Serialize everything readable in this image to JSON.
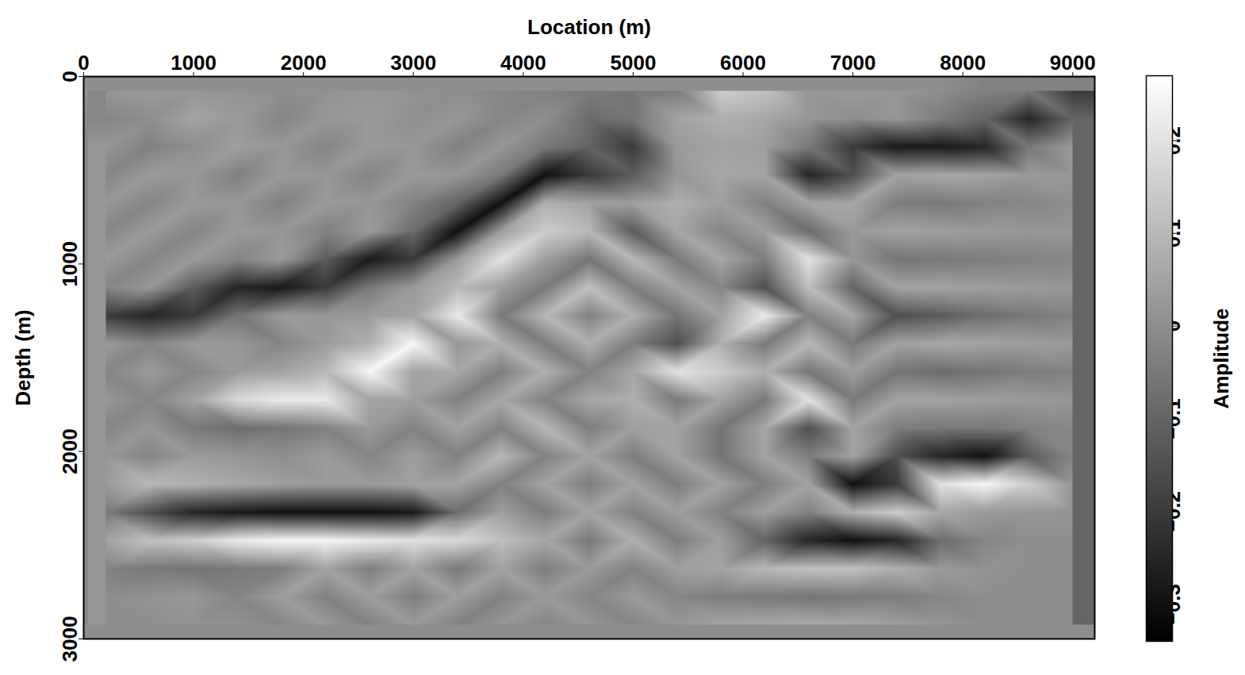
{
  "chart_data": {
    "type": "heatmap",
    "xlabel": "Location (m)",
    "ylabel": "Depth (m)",
    "xlim": [
      0,
      9200
    ],
    "ylim": [
      0,
      3000
    ],
    "xticks": [
      0,
      1000,
      2000,
      3000,
      4000,
      5000,
      6000,
      7000,
      8000,
      9000
    ],
    "yticks": [
      0,
      1000,
      2000,
      3000
    ],
    "x": [
      200,
      600,
      1000,
      1400,
      1800,
      2200,
      2600,
      3000,
      3400,
      3800,
      4200,
      4600,
      5000,
      5400,
      5800,
      6200,
      6600,
      7000,
      7400,
      7800,
      8200,
      8600,
      9000
    ],
    "y": [
      75,
      225,
      375,
      525,
      675,
      825,
      975,
      1125,
      1275,
      1425,
      1575,
      1725,
      1875,
      2025,
      2175,
      2325,
      2475,
      2625,
      2775,
      2925
    ],
    "values": [
      [
        0.02,
        0.03,
        0.02,
        0.01,
        0,
        0.01,
        0.02,
        0.01,
        0,
        -0.02,
        -0.03,
        -0.05,
        -0.06,
        -0.04,
        0.15,
        0.12,
        0.02,
        0.03,
        0.02,
        0,
        -0.03,
        -0.05,
        -0.2
      ],
      [
        -0.02,
        0,
        0.05,
        0.03,
        -0.02,
        0.02,
        0.03,
        0,
        0.02,
        -0.02,
        0,
        -0.08,
        -0.06,
        0.05,
        0.08,
        0.06,
        0.02,
        0,
        0.02,
        -0.04,
        -0.1,
        -0.25,
        -0.1
      ],
      [
        0.02,
        -0.03,
        0,
        0.04,
        0.02,
        -0.02,
        0.03,
        0.02,
        -0.03,
        0.02,
        -0.05,
        -0.1,
        -0.2,
        0.03,
        0.05,
        0.04,
        -0.05,
        -0.2,
        -0.28,
        -0.28,
        -0.25,
        -0.05,
        0.03
      ],
      [
        -0.02,
        0.03,
        0.02,
        -0.03,
        0.03,
        0.02,
        -0.02,
        0.03,
        0.02,
        -0.05,
        -0.3,
        -0.2,
        -0.12,
        0.02,
        0.06,
        0.05,
        -0.25,
        -0.15,
        0.05,
        0.06,
        0.05,
        0.03,
        0.02
      ],
      [
        0.02,
        -0.02,
        0.03,
        0.02,
        -0.03,
        0.03,
        0.02,
        -0.03,
        -0.1,
        -0.3,
        0.08,
        0.05,
        0.04,
        0.08,
        0.04,
        -0.03,
        0.05,
        0.06,
        -0.04,
        -0.05,
        -0.03,
        -0.02,
        0
      ],
      [
        -0.02,
        0.03,
        -0.02,
        0.03,
        0.02,
        -0.03,
        0.03,
        -0.08,
        -0.3,
        0.04,
        0.15,
        0.1,
        -0.12,
        0.06,
        -0.02,
        0.04,
        -0.08,
        0.03,
        0.05,
        0.04,
        0.03,
        0.02,
        0.02
      ],
      [
        0.03,
        -0.02,
        0.03,
        -0.02,
        0.03,
        -0.12,
        -0.28,
        -0.2,
        0.03,
        0.2,
        0.04,
        -0.06,
        0.1,
        -0.05,
        0.06,
        -0.04,
        0.2,
        0.02,
        -0.06,
        -0.05,
        -0.04,
        -0.03,
        -0.02
      ],
      [
        -0.02,
        0.02,
        -0.12,
        -0.25,
        -0.28,
        -0.2,
        -0.05,
        0.03,
        0.1,
        0.04,
        -0.05,
        0.12,
        -0.04,
        0.05,
        -0.02,
        -0.15,
        0.12,
        -0.1,
        0.05,
        0.05,
        0.04,
        0.03,
        0.02
      ],
      [
        -0.2,
        -0.25,
        -0.2,
        -0.06,
        0.03,
        0.02,
        0.03,
        0.05,
        0.22,
        -0.05,
        0.1,
        -0.03,
        0.08,
        -0.06,
        0.05,
        0.22,
        -0.03,
        0.06,
        -0.15,
        -0.12,
        -0.08,
        -0.05,
        -0.03
      ],
      [
        0.03,
        -0.02,
        0.03,
        0.02,
        -0.02,
        0.03,
        0.08,
        0.25,
        0.02,
        0.08,
        -0.04,
        0.08,
        -0.04,
        -0.15,
        0.08,
        -0.05,
        0.1,
        -0.05,
        0.05,
        0.06,
        0.05,
        0.04,
        0.03
      ],
      [
        -0.02,
        0.03,
        -0.02,
        0.03,
        0.05,
        0.1,
        0.25,
        0.05,
        0.06,
        -0.04,
        0.08,
        -0.03,
        0.06,
        0.2,
        0.15,
        0.08,
        -0.06,
        0.04,
        -0.06,
        -0.08,
        -0.06,
        -0.04,
        -0.03
      ],
      [
        0.02,
        -0.02,
        0.05,
        0.18,
        0.22,
        0.22,
        0.05,
        0.04,
        -0.03,
        0.06,
        -0.03,
        0.06,
        0.08,
        -0.05,
        0.05,
        -0.05,
        0.2,
        -0.05,
        0.05,
        0.05,
        0.04,
        0.03,
        0.02
      ],
      [
        -0.02,
        0.02,
        -0.05,
        -0.08,
        -0.06,
        -0.03,
        0.03,
        -0.03,
        0.05,
        -0.03,
        0.1,
        -0.04,
        0.04,
        0.05,
        -0.06,
        0.06,
        -0.15,
        0.05,
        -0.04,
        -0.05,
        -0.05,
        -0.03,
        -0.02
      ],
      [
        0.02,
        -0.02,
        0.03,
        0.02,
        0,
        0.03,
        -0.02,
        0.04,
        -0.03,
        0.1,
        -0.03,
        0.05,
        -0.04,
        0.05,
        -0.06,
        0.05,
        -0.04,
        0.05,
        -0.15,
        -0.25,
        -0.3,
        -0.12,
        -0.02
      ],
      [
        0.03,
        0.1,
        0.08,
        0.06,
        0.04,
        0.03,
        0.03,
        0.05,
        0.05,
        -0.03,
        0.05,
        -0.04,
        0.05,
        -0.04,
        0.05,
        -0.04,
        0.05,
        -0.3,
        -0.2,
        0.2,
        0.25,
        0.15,
        0.02
      ],
      [
        -0.05,
        -0.15,
        -0.25,
        -0.28,
        -0.3,
        -0.3,
        -0.3,
        -0.28,
        -0.08,
        0.04,
        -0.04,
        0.05,
        -0.03,
        0.04,
        -0.03,
        0.04,
        -0.03,
        0.08,
        0.15,
        0.06,
        0.03,
        0.02,
        0.01
      ],
      [
        0.05,
        0.12,
        0.15,
        0.22,
        0.25,
        0.25,
        0.22,
        0.2,
        0.18,
        0.12,
        0.06,
        -0.05,
        0.08,
        -0.04,
        0.04,
        -0.1,
        -0.25,
        -0.3,
        -0.25,
        -0.08,
        -0.02,
        0,
        0
      ],
      [
        -0.03,
        -0.05,
        -0.06,
        -0.05,
        -0.04,
        0.05,
        -0.04,
        0.05,
        -0.05,
        0.05,
        -0.04,
        0.03,
        -0.03,
        0.04,
        0.05,
        0.1,
        0.12,
        0.12,
        0.08,
        0.03,
        0.01,
        0,
        0
      ],
      [
        0,
        0.01,
        0.02,
        -0.02,
        0.04,
        -0.03,
        0.04,
        -0.04,
        0.04,
        -0.03,
        0.03,
        -0.02,
        0.03,
        -0.02,
        -0.04,
        -0.05,
        -0.06,
        -0.05,
        -0.04,
        -0.02,
        0,
        0,
        0
      ],
      [
        0,
        0,
        0.01,
        0.01,
        -0.02,
        0.03,
        -0.03,
        0.03,
        -0.03,
        0.02,
        -0.02,
        0.02,
        -0.02,
        0.02,
        0.05,
        0.06,
        0.07,
        0.06,
        0.04,
        0.02,
        0,
        0,
        0
      ]
    ],
    "colorbar": {
      "label": "Amplitude",
      "range": [
        -0.34,
        0.27
      ],
      "colors": [
        "#000000",
        "#ffffff"
      ],
      "ticks": [
        {
          "value": -0.3,
          "label": "−0.3"
        },
        {
          "value": -0.2,
          "label": "−0.2"
        },
        {
          "value": -0.1,
          "label": "−0.1"
        },
        0,
        0.1,
        0.2
      ]
    }
  }
}
